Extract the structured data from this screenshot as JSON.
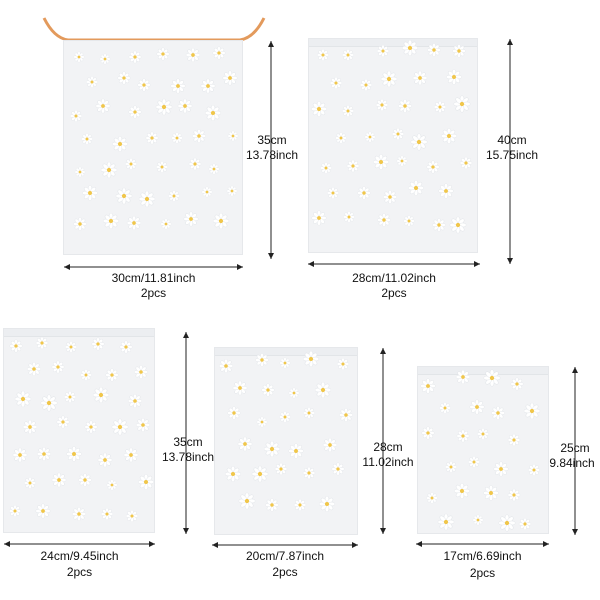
{
  "products": [
    {
      "id": "bag-1",
      "width_text": "30cm/11.81inch",
      "height_cm": "35cm",
      "height_in": "13.78inch",
      "qty": "2pcs",
      "has_drawstring": true
    },
    {
      "id": "bag-2",
      "width_text": "28cm/11.02inch",
      "height_cm": "40cm",
      "height_in": "15.75inch",
      "qty": "2pcs",
      "has_drawstring": false
    },
    {
      "id": "bag-3",
      "width_text": "24cm/9.45inch",
      "height_cm": "35cm",
      "height_in": "13.78inch",
      "qty": "2pcs",
      "has_drawstring": false
    },
    {
      "id": "bag-4",
      "width_text": "20cm/7.87inch",
      "height_cm": "28cm",
      "height_in": "11.02inch",
      "qty": "2pcs",
      "has_drawstring": false
    },
    {
      "id": "bag-5",
      "width_text": "17cm/6.69inch",
      "height_cm": "25cm",
      "height_in": "9.84inch",
      "qty": "2pcs",
      "has_drawstring": false
    }
  ],
  "colors": {
    "bag_fill": "#f2f3f5",
    "daisy_petal": "#ffffff",
    "daisy_center": "#f0c64a",
    "drawstring": "#e39a5c",
    "line": "#222222"
  }
}
